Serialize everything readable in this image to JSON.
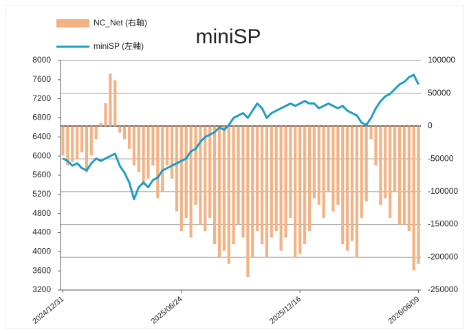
{
  "chart_data": {
    "type": "bar_line",
    "title": "miniSP",
    "categories": [
      "2024/12/31",
      null,
      null,
      null,
      null,
      null,
      null,
      null,
      null,
      null,
      null,
      null,
      null,
      null,
      null,
      null,
      null,
      null,
      null,
      null,
      null,
      null,
      null,
      null,
      null,
      "2025/06/24",
      null,
      null,
      null,
      null,
      null,
      null,
      null,
      null,
      null,
      null,
      null,
      null,
      null,
      null,
      null,
      null,
      null,
      null,
      null,
      null,
      null,
      null,
      null,
      null,
      "2025/12/16",
      null,
      null,
      null,
      null,
      null,
      null,
      null,
      null,
      null,
      null,
      null,
      null,
      null,
      null,
      null,
      null,
      null,
      null,
      null,
      null,
      null,
      null,
      null,
      null,
      "2026/06/09"
    ],
    "series": [
      {
        "name": "NC_Net (右軸)",
        "color": "#f4b183",
        "axis": "y2",
        "values": [
          -45000,
          -60000,
          -55000,
          -50000,
          -40000,
          -70000,
          -45000,
          -20000,
          5000,
          35000,
          80000,
          70000,
          -10000,
          -20000,
          -35000,
          -60000,
          -70000,
          -90000,
          -80000,
          -60000,
          -110000,
          -100000,
          -60000,
          -80000,
          -130000,
          -160000,
          -140000,
          -170000,
          -120000,
          -150000,
          -160000,
          -140000,
          -180000,
          -200000,
          -190000,
          -210000,
          -180000,
          -150000,
          -170000,
          -230000,
          -200000,
          -160000,
          -180000,
          -200000,
          -170000,
          -160000,
          -190000,
          -170000,
          -140000,
          -200000,
          -195000,
          -180000,
          -160000,
          -110000,
          -120000,
          -140000,
          -100000,
          -130000,
          -120000,
          -180000,
          -190000,
          -175000,
          -200000,
          -140000,
          -115000,
          -20000,
          -60000,
          -120000,
          -110000,
          -140000,
          -100000,
          -150000,
          -150000,
          -160000,
          -220000,
          -210000
        ]
      },
      {
        "name": "miniSP (左軸)",
        "color": "#1d9cc4",
        "axis": "y",
        "values": [
          5950,
          5900,
          5800,
          5850,
          5750,
          5700,
          5850,
          5950,
          5900,
          5950,
          6000,
          6050,
          5800,
          5650,
          5450,
          5100,
          5350,
          5450,
          5350,
          5500,
          5550,
          5700,
          5750,
          5800,
          5850,
          5900,
          5950,
          6100,
          6150,
          6300,
          6400,
          6450,
          6500,
          6600,
          6550,
          6650,
          6800,
          6850,
          6900,
          6800,
          6950,
          7100,
          7000,
          6800,
          6900,
          6950,
          7000,
          7050,
          7100,
          7050,
          7100,
          7150,
          7100,
          7100,
          7000,
          7050,
          7100,
          7050,
          7000,
          7050,
          6950,
          6900,
          6850,
          6700,
          6650,
          6800,
          7000,
          7150,
          7250,
          7300,
          7400,
          7500,
          7550,
          7650,
          7700,
          7500
        ]
      }
    ],
    "ylim": [
      3200,
      8000
    ],
    "yticks": [
      3200,
      3600,
      4000,
      4400,
      4800,
      5200,
      5600,
      6000,
      6400,
      6800,
      7200,
      7600,
      8000
    ],
    "y2lim": [
      -250000,
      100000
    ],
    "y2ticks": [
      -250000,
      -200000,
      -150000,
      -100000,
      -50000,
      0,
      50000,
      100000
    ],
    "grid": true,
    "legend": "top-left"
  }
}
